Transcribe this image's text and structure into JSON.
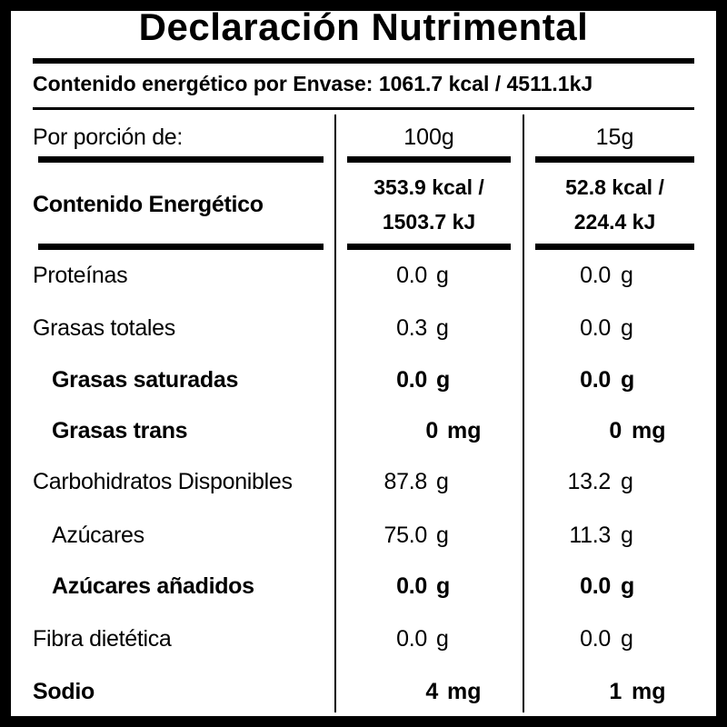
{
  "title": "Declaración Nutrimental",
  "energy_per_package": "Contenido energético por Envase: 1061.7 kcal / 4511.1kJ",
  "portion_header": {
    "label": "Por porción de:",
    "col1": "100g",
    "col2": "15g"
  },
  "energy": {
    "label": "Contenido Energético",
    "col1_line1": "353.9 kcal /",
    "col1_line2": "1503.7 kJ",
    "col2_line1": "52.8 kcal /",
    "col2_line2": "224.4 kJ"
  },
  "rows": [
    {
      "label": "Proteínas",
      "v1": "0.0",
      "u1": "g",
      "v2": "0.0",
      "u2": "g"
    },
    {
      "label": "Grasas totales",
      "v1": "0.3",
      "u1": "g",
      "v2": "0.0",
      "u2": "g"
    },
    {
      "label": "Grasas saturadas",
      "v1": "0.0",
      "u1": "g",
      "v2": "0.0",
      "u2": "g"
    },
    {
      "label": "Grasas trans",
      "v1": "0",
      "u1": "mg",
      "v2": "0",
      "u2": "mg"
    },
    {
      "label": "Carbohidratos Disponibles",
      "v1": "87.8",
      "u1": "g",
      "v2": "13.2",
      "u2": "g"
    },
    {
      "label": "Azúcares",
      "v1": "75.0",
      "u1": "g",
      "v2": "11.3",
      "u2": "g"
    },
    {
      "label": "Azúcares añadidos",
      "v1": "0.0",
      "u1": "g",
      "v2": "0.0",
      "u2": "g"
    },
    {
      "label": "Fibra dietética",
      "v1": "0.0",
      "u1": "g",
      "v2": "0.0",
      "u2": "g"
    },
    {
      "label": "Sodio",
      "v1": "4",
      "u1": "mg",
      "v2": "1",
      "u2": "mg"
    }
  ]
}
